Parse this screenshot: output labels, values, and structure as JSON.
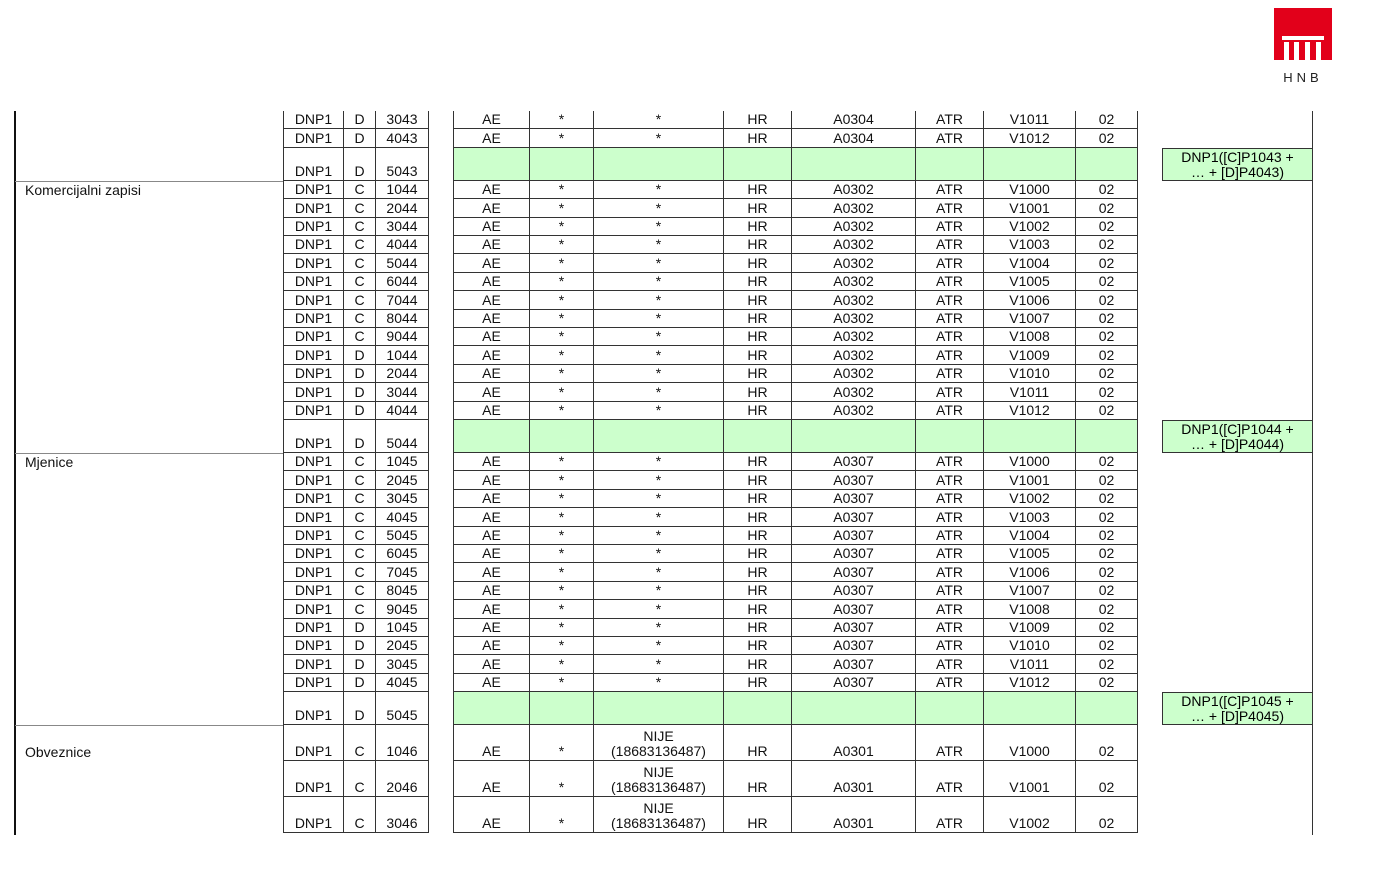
{
  "logo": {
    "text": "HNB",
    "color": "#e2001a"
  },
  "colors": {
    "sum_row": "#ccffcc"
  },
  "groups": [
    {
      "label": "",
      "rows": [
        [
          "DNP1",
          "D",
          "3043",
          "AE",
          "*",
          "*",
          "HR",
          "A0304",
          "ATR",
          "V1011",
          "02"
        ],
        [
          "DNP1",
          "D",
          "4043",
          "AE",
          "*",
          "*",
          "HR",
          "A0304",
          "ATR",
          "V1012",
          "02"
        ],
        {
          "sum": [
            "DNP1",
            "D",
            "5043"
          ],
          "formula": [
            "DNP1([C]P1043 +",
            "… + [D]P4043)"
          ]
        }
      ]
    },
    {
      "label": "Komercijalni zapisi",
      "rows": [
        [
          "DNP1",
          "C",
          "1044",
          "AE",
          "*",
          "*",
          "HR",
          "A0302",
          "ATR",
          "V1000",
          "02"
        ],
        [
          "DNP1",
          "C",
          "2044",
          "AE",
          "*",
          "*",
          "HR",
          "A0302",
          "ATR",
          "V1001",
          "02"
        ],
        [
          "DNP1",
          "C",
          "3044",
          "AE",
          "*",
          "*",
          "HR",
          "A0302",
          "ATR",
          "V1002",
          "02"
        ],
        [
          "DNP1",
          "C",
          "4044",
          "AE",
          "*",
          "*",
          "HR",
          "A0302",
          "ATR",
          "V1003",
          "02"
        ],
        [
          "DNP1",
          "C",
          "5044",
          "AE",
          "*",
          "*",
          "HR",
          "A0302",
          "ATR",
          "V1004",
          "02"
        ],
        [
          "DNP1",
          "C",
          "6044",
          "AE",
          "*",
          "*",
          "HR",
          "A0302",
          "ATR",
          "V1005",
          "02"
        ],
        [
          "DNP1",
          "C",
          "7044",
          "AE",
          "*",
          "*",
          "HR",
          "A0302",
          "ATR",
          "V1006",
          "02"
        ],
        [
          "DNP1",
          "C",
          "8044",
          "AE",
          "*",
          "*",
          "HR",
          "A0302",
          "ATR",
          "V1007",
          "02"
        ],
        [
          "DNP1",
          "C",
          "9044",
          "AE",
          "*",
          "*",
          "HR",
          "A0302",
          "ATR",
          "V1008",
          "02"
        ],
        [
          "DNP1",
          "D",
          "1044",
          "AE",
          "*",
          "*",
          "HR",
          "A0302",
          "ATR",
          "V1009",
          "02"
        ],
        [
          "DNP1",
          "D",
          "2044",
          "AE",
          "*",
          "*",
          "HR",
          "A0302",
          "ATR",
          "V1010",
          "02"
        ],
        [
          "DNP1",
          "D",
          "3044",
          "AE",
          "*",
          "*",
          "HR",
          "A0302",
          "ATR",
          "V1011",
          "02"
        ],
        [
          "DNP1",
          "D",
          "4044",
          "AE",
          "*",
          "*",
          "HR",
          "A0302",
          "ATR",
          "V1012",
          "02"
        ],
        {
          "sum": [
            "DNP1",
            "D",
            "5044"
          ],
          "formula": [
            "DNP1([C]P1044 +",
            "… + [D]P4044)"
          ]
        }
      ]
    },
    {
      "label": "Mjenice",
      "rows": [
        [
          "DNP1",
          "C",
          "1045",
          "AE",
          "*",
          "*",
          "HR",
          "A0307",
          "ATR",
          "V1000",
          "02"
        ],
        [
          "DNP1",
          "C",
          "2045",
          "AE",
          "*",
          "*",
          "HR",
          "A0307",
          "ATR",
          "V1001",
          "02"
        ],
        [
          "DNP1",
          "C",
          "3045",
          "AE",
          "*",
          "*",
          "HR",
          "A0307",
          "ATR",
          "V1002",
          "02"
        ],
        [
          "DNP1",
          "C",
          "4045",
          "AE",
          "*",
          "*",
          "HR",
          "A0307",
          "ATR",
          "V1003",
          "02"
        ],
        [
          "DNP1",
          "C",
          "5045",
          "AE",
          "*",
          "*",
          "HR",
          "A0307",
          "ATR",
          "V1004",
          "02"
        ],
        [
          "DNP1",
          "C",
          "6045",
          "AE",
          "*",
          "*",
          "HR",
          "A0307",
          "ATR",
          "V1005",
          "02"
        ],
        [
          "DNP1",
          "C",
          "7045",
          "AE",
          "*",
          "*",
          "HR",
          "A0307",
          "ATR",
          "V1006",
          "02"
        ],
        [
          "DNP1",
          "C",
          "8045",
          "AE",
          "*",
          "*",
          "HR",
          "A0307",
          "ATR",
          "V1007",
          "02"
        ],
        [
          "DNP1",
          "C",
          "9045",
          "AE",
          "*",
          "*",
          "HR",
          "A0307",
          "ATR",
          "V1008",
          "02"
        ],
        [
          "DNP1",
          "D",
          "1045",
          "AE",
          "*",
          "*",
          "HR",
          "A0307",
          "ATR",
          "V1009",
          "02"
        ],
        [
          "DNP1",
          "D",
          "2045",
          "AE",
          "*",
          "*",
          "HR",
          "A0307",
          "ATR",
          "V1010",
          "02"
        ],
        [
          "DNP1",
          "D",
          "3045",
          "AE",
          "*",
          "*",
          "HR",
          "A0307",
          "ATR",
          "V1011",
          "02"
        ],
        [
          "DNP1",
          "D",
          "4045",
          "AE",
          "*",
          "*",
          "HR",
          "A0307",
          "ATR",
          "V1012",
          "02"
        ],
        {
          "sum": [
            "DNP1",
            "D",
            "5045"
          ],
          "formula": [
            "DNP1([C]P1045 +",
            "… + [D]P4045)"
          ]
        }
      ]
    },
    {
      "label": "Obveznice",
      "tall": true,
      "rows": [
        [
          "DNP1",
          "C",
          "1046",
          "AE",
          "*",
          "NIJE (18683136487)",
          "HR",
          "A0301",
          "ATR",
          "V1000",
          "02"
        ],
        [
          "DNP1",
          "C",
          "2046",
          "AE",
          "*",
          "NIJE (18683136487)",
          "HR",
          "A0301",
          "ATR",
          "V1001",
          "02"
        ],
        [
          "DNP1",
          "C",
          "3046",
          "AE",
          "*",
          "NIJE (18683136487)",
          "HR",
          "A0301",
          "ATR",
          "V1002",
          "02"
        ]
      ]
    }
  ]
}
